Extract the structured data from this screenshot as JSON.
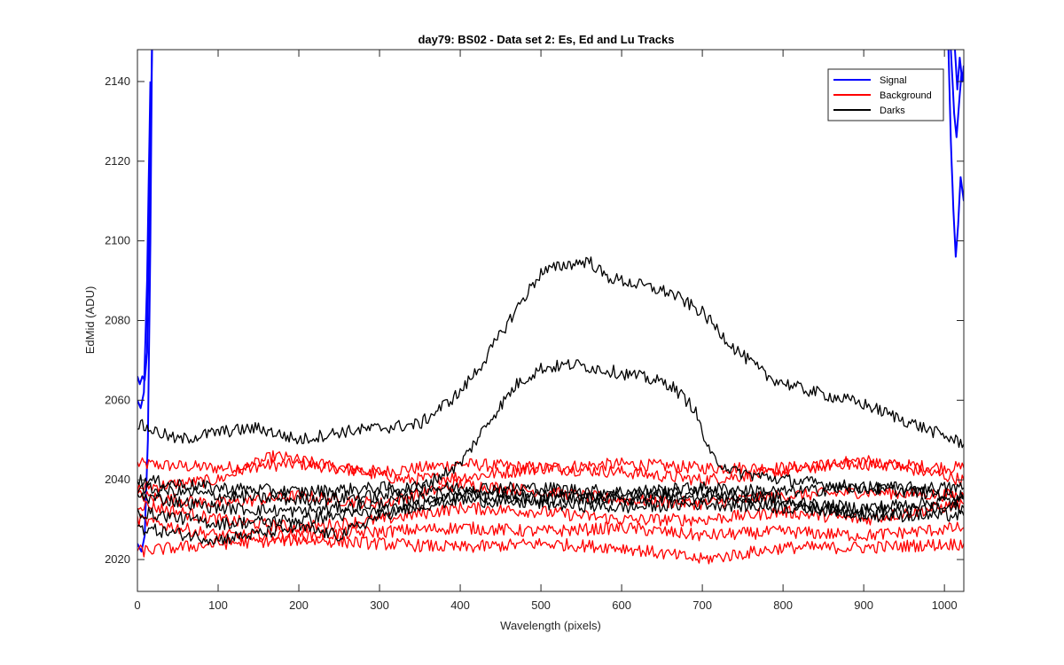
{
  "chart_data": {
    "type": "line",
    "title": "day79: BS02 - Data set 2: Es, Ed and Lu Tracks",
    "xlabel": "Wavelength (pixels)",
    "ylabel": "EdMid (ADU)",
    "xlim": [
      0,
      1024
    ],
    "ylim": [
      2012,
      2148
    ],
    "xticks": [
      0,
      100,
      200,
      300,
      400,
      500,
      600,
      700,
      800,
      900,
      1000
    ],
    "yticks": [
      2020,
      2040,
      2060,
      2080,
      2100,
      2120,
      2140
    ],
    "grid": false,
    "legend_position": "top-right",
    "legend": [
      {
        "label": "Signal",
        "color": "#0000ff"
      },
      {
        "label": "Background",
        "color": "#ff0000"
      },
      {
        "label": "Darks",
        "color": "#000000"
      }
    ],
    "series": [
      {
        "group": "Signal",
        "color": "#0000ff",
        "points": [
          [
            0,
            2066
          ],
          [
            3,
            2064
          ],
          [
            6,
            2066
          ],
          [
            9,
            2065
          ],
          [
            12,
            2072
          ],
          [
            15,
            2110
          ],
          [
            18,
            2148
          ]
        ]
      },
      {
        "group": "Signal",
        "color": "#0000ff",
        "points": [
          [
            0,
            2024
          ],
          [
            5,
            2022
          ],
          [
            9,
            2026
          ],
          [
            13,
            2050
          ],
          [
            16,
            2100
          ],
          [
            18,
            2148
          ]
        ]
      },
      {
        "group": "Signal",
        "color": "#0000ff",
        "points": [
          [
            0,
            2060
          ],
          [
            4,
            2058
          ],
          [
            8,
            2062
          ],
          [
            12,
            2090
          ],
          [
            16,
            2140
          ]
        ]
      },
      {
        "group": "Signal",
        "color": "#0000ff",
        "points": [
          [
            1005,
            2148
          ],
          [
            1008,
            2125
          ],
          [
            1011,
            2108
          ],
          [
            1014,
            2096
          ],
          [
            1017,
            2104
          ],
          [
            1020,
            2116
          ],
          [
            1024,
            2110
          ]
        ]
      },
      {
        "group": "Signal",
        "color": "#0000ff",
        "points": [
          [
            1008,
            2148
          ],
          [
            1012,
            2132
          ],
          [
            1015,
            2126
          ],
          [
            1018,
            2134
          ],
          [
            1021,
            2142
          ],
          [
            1024,
            2140
          ]
        ]
      },
      {
        "group": "Signal",
        "color": "#0000ff",
        "points": [
          [
            1013,
            2148
          ],
          [
            1016,
            2138
          ],
          [
            1019,
            2146
          ],
          [
            1022,
            2140
          ],
          [
            1024,
            2144
          ]
        ]
      },
      {
        "group": "Background",
        "color": "#ff0000",
        "points": [
          [
            0,
            2044
          ],
          [
            100,
            2043
          ],
          [
            200,
            2044
          ],
          [
            300,
            2042
          ],
          [
            400,
            2044
          ],
          [
            500,
            2043
          ],
          [
            600,
            2044
          ],
          [
            700,
            2043
          ],
          [
            800,
            2043
          ],
          [
            900,
            2044
          ],
          [
            1024,
            2043
          ]
        ]
      },
      {
        "group": "Background",
        "color": "#ff0000",
        "points": [
          [
            0,
            2038
          ],
          [
            100,
            2040
          ],
          [
            170,
            2046
          ],
          [
            250,
            2043
          ],
          [
            330,
            2040
          ],
          [
            420,
            2041
          ],
          [
            500,
            2043
          ],
          [
            600,
            2042
          ],
          [
            700,
            2040
          ],
          [
            800,
            2042
          ],
          [
            900,
            2045
          ],
          [
            1024,
            2040
          ]
        ]
      },
      {
        "group": "Background",
        "color": "#ff0000",
        "points": [
          [
            0,
            2036
          ],
          [
            100,
            2034
          ],
          [
            200,
            2036
          ],
          [
            300,
            2034
          ],
          [
            400,
            2039
          ],
          [
            500,
            2037
          ],
          [
            600,
            2035
          ],
          [
            700,
            2034
          ],
          [
            800,
            2036
          ],
          [
            900,
            2037
          ],
          [
            1024,
            2036
          ]
        ]
      },
      {
        "group": "Background",
        "color": "#ff0000",
        "points": [
          [
            0,
            2034
          ],
          [
            100,
            2030
          ],
          [
            200,
            2028
          ],
          [
            300,
            2030
          ],
          [
            400,
            2033
          ],
          [
            500,
            2032
          ],
          [
            600,
            2030
          ],
          [
            700,
            2030
          ],
          [
            800,
            2032
          ],
          [
            900,
            2030
          ],
          [
            1024,
            2034
          ]
        ]
      },
      {
        "group": "Background",
        "color": "#ff0000",
        "points": [
          [
            0,
            2030
          ],
          [
            100,
            2026
          ],
          [
            200,
            2026
          ],
          [
            300,
            2027
          ],
          [
            400,
            2028
          ],
          [
            500,
            2027
          ],
          [
            600,
            2028
          ],
          [
            700,
            2026
          ],
          [
            800,
            2027
          ],
          [
            900,
            2026
          ],
          [
            1024,
            2028
          ]
        ]
      },
      {
        "group": "Background",
        "color": "#ff0000",
        "points": [
          [
            0,
            2022
          ],
          [
            100,
            2024
          ],
          [
            200,
            2025
          ],
          [
            300,
            2024
          ],
          [
            400,
            2023
          ],
          [
            500,
            2024
          ],
          [
            600,
            2023
          ],
          [
            700,
            2020
          ],
          [
            800,
            2023
          ],
          [
            900,
            2023
          ],
          [
            1024,
            2024
          ]
        ]
      },
      {
        "group": "Darks",
        "color": "#000000",
        "points": [
          [
            0,
            2054
          ],
          [
            50,
            2050
          ],
          [
            100,
            2052
          ],
          [
            150,
            2053
          ],
          [
            200,
            2050
          ],
          [
            250,
            2052
          ],
          [
            300,
            2053
          ],
          [
            350,
            2054
          ],
          [
            400,
            2062
          ],
          [
            430,
            2070
          ],
          [
            470,
            2083
          ],
          [
            500,
            2092
          ],
          [
            530,
            2094
          ],
          [
            560,
            2095
          ],
          [
            580,
            2091
          ],
          [
            620,
            2089
          ],
          [
            660,
            2087
          ],
          [
            700,
            2082
          ],
          [
            740,
            2073
          ],
          [
            780,
            2066
          ],
          [
            820,
            2063
          ],
          [
            860,
            2061
          ],
          [
            900,
            2059
          ],
          [
            950,
            2055
          ],
          [
            1000,
            2051
          ],
          [
            1024,
            2049
          ]
        ]
      },
      {
        "group": "Darks",
        "color": "#000000",
        "points": [
          [
            0,
            2038
          ],
          [
            100,
            2036
          ],
          [
            200,
            2035
          ],
          [
            300,
            2036
          ],
          [
            350,
            2038
          ],
          [
            400,
            2044
          ],
          [
            440,
            2056
          ],
          [
            470,
            2064
          ],
          [
            500,
            2068
          ],
          [
            540,
            2069
          ],
          [
            570,
            2068
          ],
          [
            620,
            2066
          ],
          [
            660,
            2064
          ],
          [
            690,
            2058
          ],
          [
            710,
            2046
          ],
          [
            740,
            2042
          ],
          [
            800,
            2040
          ],
          [
            900,
            2038
          ],
          [
            1024,
            2036
          ]
        ]
      },
      {
        "group": "Darks",
        "color": "#000000",
        "points": [
          [
            0,
            2040
          ],
          [
            100,
            2038
          ],
          [
            200,
            2037
          ],
          [
            300,
            2038
          ],
          [
            400,
            2038
          ],
          [
            500,
            2038
          ],
          [
            600,
            2037
          ],
          [
            700,
            2038
          ],
          [
            800,
            2037
          ],
          [
            900,
            2038
          ],
          [
            1024,
            2038
          ]
        ]
      },
      {
        "group": "Darks",
        "color": "#000000",
        "points": [
          [
            0,
            2036
          ],
          [
            100,
            2033
          ],
          [
            200,
            2032
          ],
          [
            300,
            2034
          ],
          [
            400,
            2037
          ],
          [
            500,
            2036
          ],
          [
            600,
            2035
          ],
          [
            700,
            2036
          ],
          [
            800,
            2034
          ],
          [
            900,
            2033
          ],
          [
            1024,
            2035
          ]
        ]
      },
      {
        "group": "Darks",
        "color": "#000000",
        "points": [
          [
            0,
            2032
          ],
          [
            100,
            2029
          ],
          [
            200,
            2030
          ],
          [
            300,
            2032
          ],
          [
            400,
            2035
          ],
          [
            500,
            2034
          ],
          [
            600,
            2033
          ],
          [
            700,
            2034
          ],
          [
            800,
            2033
          ],
          [
            900,
            2032
          ],
          [
            1024,
            2033
          ]
        ]
      },
      {
        "group": "Darks",
        "color": "#000000",
        "points": [
          [
            0,
            2028
          ],
          [
            100,
            2025
          ],
          [
            200,
            2028
          ],
          [
            250,
            2026
          ],
          [
            300,
            2031
          ],
          [
            400,
            2036
          ],
          [
            500,
            2035
          ],
          [
            600,
            2036
          ],
          [
            700,
            2037
          ],
          [
            800,
            2035
          ],
          [
            900,
            2031
          ],
          [
            1024,
            2031
          ]
        ]
      }
    ]
  }
}
